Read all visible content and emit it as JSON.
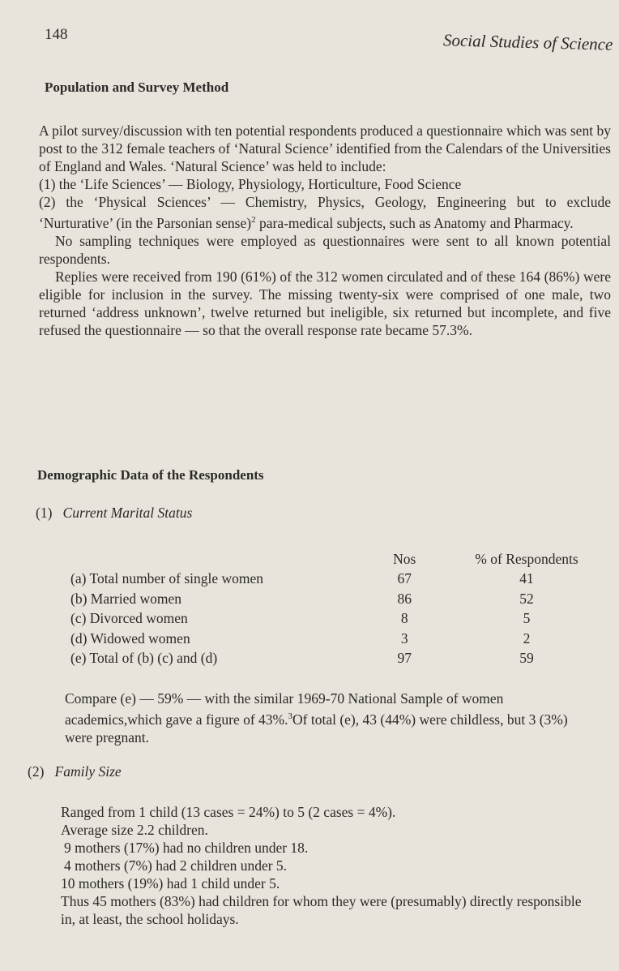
{
  "header": {
    "page_number": "148",
    "running_title": "Social Studies of Science"
  },
  "section1": {
    "heading": "Population and Survey Method",
    "paragraphs": [
      "A pilot survey/discussion with ten potential respondents produced a questionnaire which was sent by post to the 312 female teachers of ‘Natural Science’ identified from the Calendars of the Universities of England and Wales. ‘Natural Science’ was held to include:",
      "(1) the ‘Life Sciences’ — Biology, Physiology, Horticulture, Food Science",
      "(2) the ‘Physical Sciences’ — Chemistry, Physics, Geology, Engineering but to exclude ‘Nurturative’ (in the Parsonian sense)",
      "para-medical subjects, such as Anatomy and Pharmacy.",
      "No sampling techniques were employed as questionnaires were sent to all known potential respondents.",
      "Replies were received from 190 (61%) of the 312 women circulated and of these 164 (86%) were eligible for inclusion in the survey. The missing twenty-six were comprised of one male, two returned ‘address unknown’, twelve returned but ineligible, six returned but incomplete, and five refused the questionnaire — so that the overall response rate became 57.3%."
    ],
    "footnote_ref": "2"
  },
  "section2": {
    "heading": "Demographic Data of the Respondents",
    "marital": {
      "number": "(1)",
      "title": "Current Marital Status",
      "col_nos": "Nos",
      "col_pct": "% of Respondents",
      "rows": [
        {
          "label": "(a) Total number of single women",
          "nos": "67",
          "pct": "41"
        },
        {
          "label": "(b) Married women",
          "nos": "86",
          "pct": "52"
        },
        {
          "label": "(c) Divorced women",
          "nos": "8",
          "pct": "5"
        },
        {
          "label": "(d) Widowed women",
          "nos": "3",
          "pct": "2"
        },
        {
          "label": "(e) Total of (b) (c) and (d)",
          "nos": "97",
          "pct": "59"
        }
      ],
      "note_a": "Compare (e) — 59% — with the similar 1969-70 National Sample of women academics,which gave a figure of 43%.",
      "note_ref": "3",
      "note_b": "Of total (e), 43 (44%) were childless, but 3 (3%) were pregnant."
    },
    "family": {
      "number": "(2)",
      "title": "Family Size",
      "lines": [
        "Ranged from 1 child (13 cases = 24%) to 5 (2 cases = 4%).",
        "Average size 2.2 children.",
        "9 mothers (17%) had no children under 18.",
        "4 mothers (7%) had 2 children under 5.",
        "10 mothers (19%) had 1 child under 5.",
        "Thus 45 mothers (83%) had children for whom they were (presumably) directly responsible in, at least, the school holidays."
      ]
    }
  }
}
